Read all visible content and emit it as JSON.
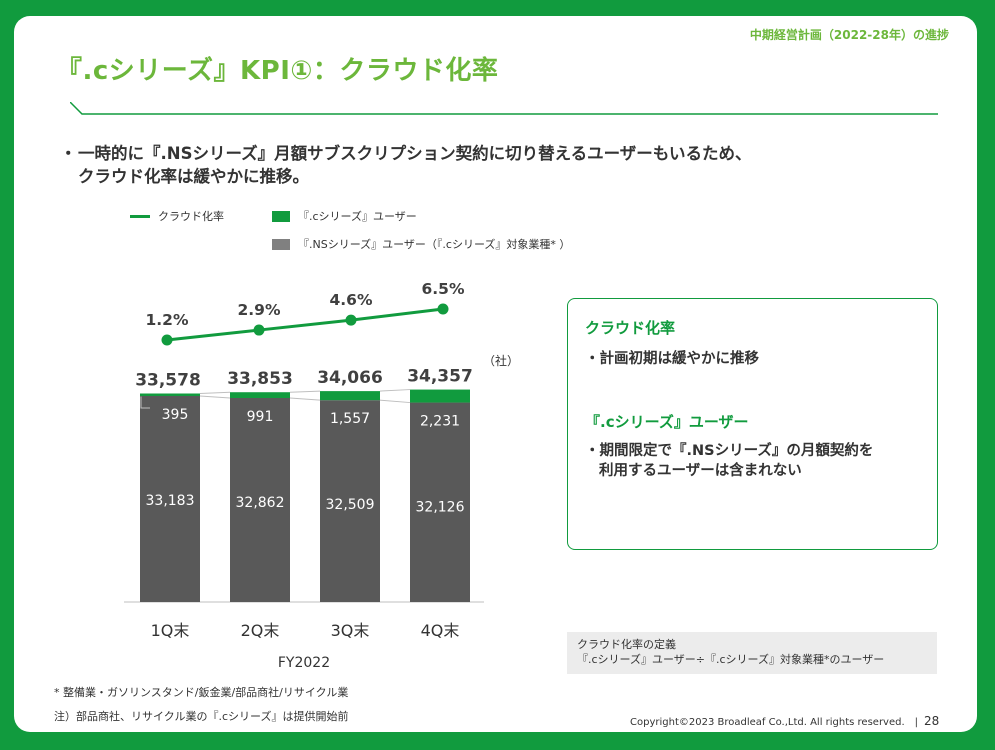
{
  "header": {
    "tag": "中期経営計画（2022-28年）の進捗"
  },
  "title": "『.cシリーズ』KPI①：クラウド化率",
  "lead": {
    "bullet": "・",
    "line1": "一時的に『.NSシリーズ』月額サブスクリプション契約に切り替えるユーザーもいるため、",
    "line2": "クラウド化率は緩やかに推移。"
  },
  "colors": {
    "brand_green": "#119b3e",
    "title_green": "#6cb73b",
    "ns_gray": "#595959",
    "legend_gray": "#808080"
  },
  "legend": {
    "cloud_rate": "クラウド化率",
    "c_users": "『.cシリーズ』ユーザー",
    "ns_users": "『.NSシリーズ』ユーザー（『.cシリーズ』対象業種* ）"
  },
  "chart_data": {
    "type": "bar",
    "stacked": true,
    "categories": [
      "1Q末",
      "2Q末",
      "3Q末",
      "4Q末"
    ],
    "xlabel": "FY2022",
    "unit_label": "（社）",
    "totals": [
      "33,578",
      "33,853",
      "34,066",
      "34,357"
    ],
    "series": [
      {
        "name": "『.NSシリーズ』ユーザー（『.cシリーズ』対象業種* ）",
        "values": [
          33183,
          32862,
          32509,
          32126
        ],
        "labels": [
          "33,183",
          "32,862",
          "32,509",
          "32,126"
        ],
        "color": "#595959"
      },
      {
        "name": "『.cシリーズ』ユーザー",
        "values": [
          395,
          991,
          1557,
          2231
        ],
        "labels": [
          "395",
          "991",
          "1,557",
          "2,231"
        ],
        "color": "#119b3e"
      }
    ],
    "line_series": {
      "name": "クラウド化率",
      "values": [
        1.2,
        2.9,
        4.6,
        6.5
      ],
      "labels": [
        "1.2%",
        "2.9%",
        "4.6%",
        "6.5%"
      ],
      "color": "#119b3e"
    }
  },
  "infobox": {
    "h1": "クラウド化率",
    "t1": "・計画初期は緩やかに推移",
    "h2": "『.cシリーズ』ユーザー",
    "t2_line1": "・期間限定で『.NSシリーズ』の月額契約を",
    "t2_line2": "利用するユーザーは含まれない"
  },
  "definition": {
    "title": "クラウド化率の定義",
    "formula": "『.cシリーズ』ユーザー÷『.cシリーズ』対象業種*のユーザー"
  },
  "footnotes": {
    "note1": "* 整備業・ガソリンスタンド/鈑金業/部品商社/リサイクル業",
    "note2": "注）部品商社、リサイクル業の『.cシリーズ』は提供開始前"
  },
  "footer": {
    "copyright": "Copyright©2023 Broadleaf Co.,Ltd. All rights reserved.",
    "separator": "|",
    "page": "28"
  }
}
